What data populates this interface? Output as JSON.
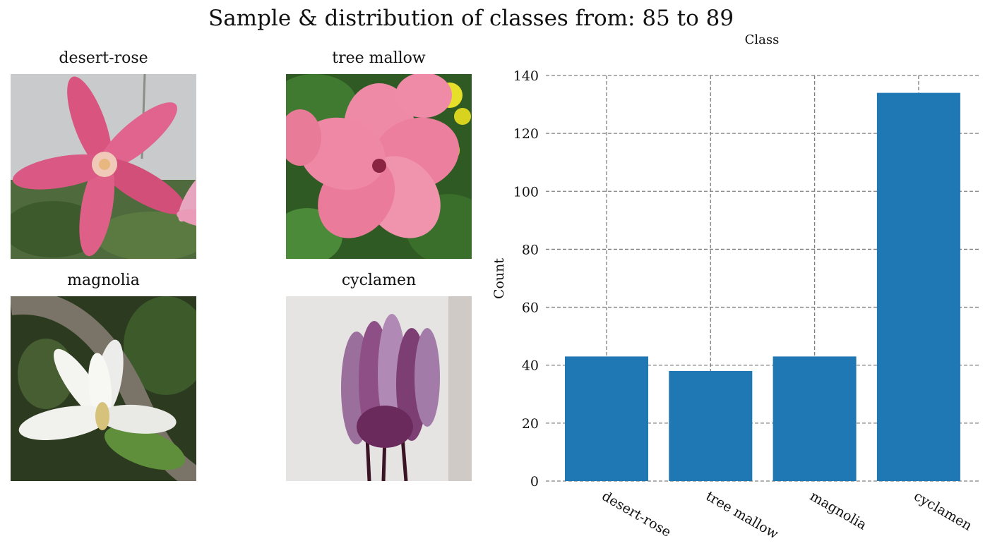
{
  "figure": {
    "title": "Sample & distribution of classes from: 85 to 89"
  },
  "samples": [
    {
      "label": "desert-rose"
    },
    {
      "label": "tree mallow"
    },
    {
      "label": "magnolia"
    },
    {
      "label": "cyclamen"
    }
  ],
  "chart_data": {
    "type": "bar",
    "title": "Class",
    "xlabel": "",
    "ylabel": "Count",
    "categories": [
      "desert-rose",
      "tree mallow",
      "magnolia",
      "cyclamen"
    ],
    "values": [
      43,
      38,
      43,
      134
    ],
    "ylim": [
      0,
      140
    ],
    "yticks": [
      0,
      20,
      40,
      60,
      80,
      100,
      120,
      140
    ],
    "grid": true,
    "bar_color": "#1f77b4",
    "grid_color": "#808080"
  }
}
